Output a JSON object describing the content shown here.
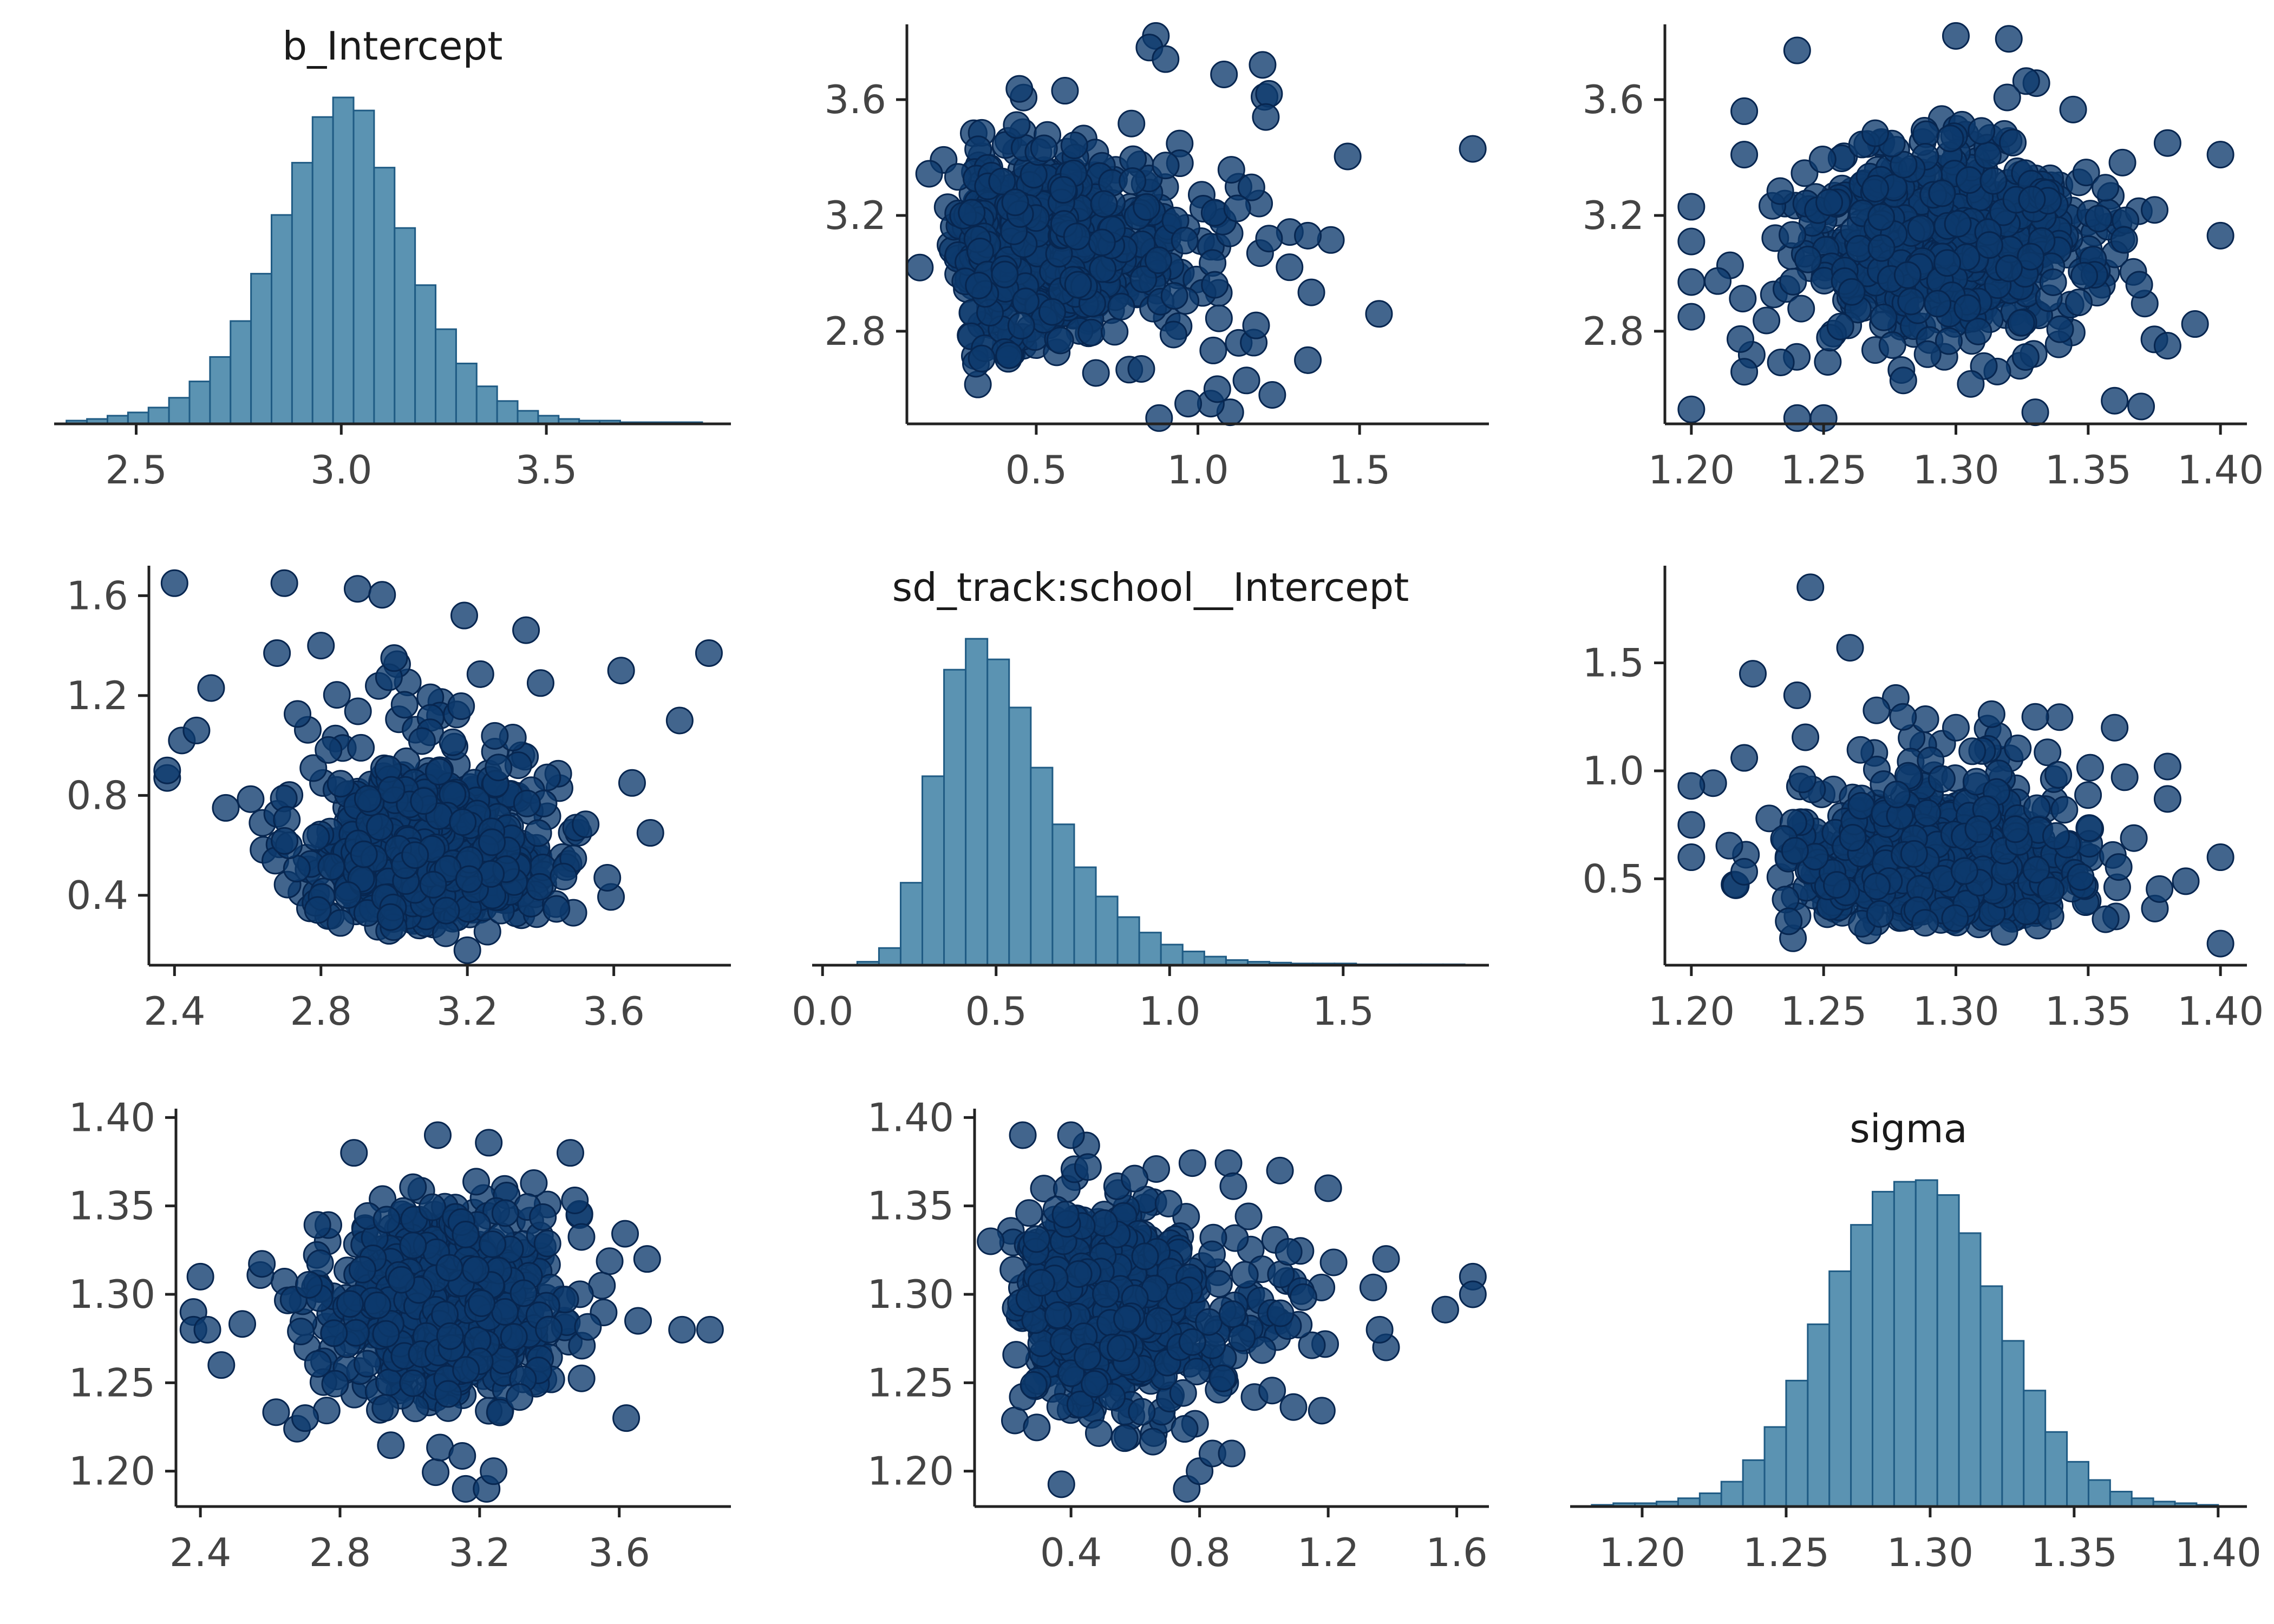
{
  "colors": {
    "histogram_fill": "#5b93b2",
    "histogram_edge": "#1f5b84",
    "point_fill": "#0d3a6d",
    "point_edge": "#072650",
    "axis": "#222222"
  },
  "chart_data": [
    {
      "type": "bar",
      "panel": "row1-col1",
      "variable": "b_Intercept",
      "title": "b_Intercept",
      "xlabel": "",
      "ylabel": "",
      "xlim": [
        2.3,
        3.95
      ],
      "bin_start": 2.33,
      "bin_width": 0.05,
      "counts": [
        2,
        3,
        5,
        7,
        10,
        16,
        26,
        41,
        63,
        92,
        128,
        160,
        188,
        200,
        192,
        157,
        120,
        85,
        58,
        37,
        23,
        14,
        8,
        5,
        3,
        2,
        2,
        1,
        1,
        1,
        1
      ],
      "x_ticks": [
        2.5,
        3.0,
        3.5
      ],
      "x_tick_labels": [
        "2.5",
        "3.0",
        "3.5"
      ],
      "y_ticks": [],
      "y_tick_labels": []
    },
    {
      "type": "scatter",
      "panel": "row1-col2",
      "x_variable": "sd_track:school__Intercept",
      "y_variable": "b_Intercept",
      "title": "",
      "xlabel": "",
      "ylabel": "",
      "xlim": [
        0.1,
        1.9
      ],
      "ylim": [
        2.48,
        3.86
      ],
      "x_ticks": [
        0.5,
        1.0,
        1.5
      ],
      "x_tick_labels": [
        "0.5",
        "1.0",
        "1.5"
      ],
      "y_ticks": [
        2.8,
        3.2,
        3.6
      ],
      "y_tick_labels": [
        "2.8",
        "3.2",
        "3.6"
      ],
      "cloud": {
        "n": 650,
        "x_mean": 0.55,
        "x_sd": 0.2,
        "x_skew": true,
        "y_mean": 3.1,
        "y_sd": 0.17,
        "seed": 11
      },
      "points": [
        [
          1.85,
          3.43
        ],
        [
          1.56,
          2.86
        ],
        [
          1.34,
          3.13
        ],
        [
          1.34,
          2.7
        ],
        [
          1.22,
          3.12
        ],
        [
          1.23,
          2.58
        ],
        [
          1.2,
          3.72
        ],
        [
          1.22,
          3.62
        ],
        [
          1.21,
          3.54
        ],
        [
          1.18,
          2.82
        ],
        [
          1.1,
          2.52
        ],
        [
          1.04,
          2.55
        ],
        [
          0.87,
          3.82
        ],
        [
          0.85,
          3.78
        ],
        [
          0.9,
          3.74
        ],
        [
          0.88,
          2.5
        ],
        [
          0.97,
          2.55
        ],
        [
          0.14,
          3.02
        ],
        [
          1.06,
          2.6
        ],
        [
          1.15,
          2.63
        ]
      ]
    },
    {
      "type": "scatter",
      "panel": "row1-col3",
      "x_variable": "sigma",
      "y_variable": "b_Intercept",
      "title": "",
      "xlabel": "",
      "ylabel": "",
      "xlim": [
        1.19,
        1.41
      ],
      "ylim": [
        2.48,
        3.86
      ],
      "x_ticks": [
        1.2,
        1.25,
        1.3,
        1.35,
        1.4
      ],
      "x_tick_labels": [
        "1.20",
        "1.25",
        "1.30",
        "1.35",
        "1.40"
      ],
      "y_ticks": [
        2.8,
        3.2,
        3.6
      ],
      "y_tick_labels": [
        "2.8",
        "3.2",
        "3.6"
      ],
      "cloud": {
        "n": 650,
        "x_mean": 1.295,
        "x_sd": 0.028,
        "x_skew": false,
        "y_mean": 3.1,
        "y_sd": 0.17,
        "seed": 23
      },
      "points": [
        [
          1.2,
          2.53
        ],
        [
          1.2,
          3.11
        ],
        [
          1.2,
          2.97
        ],
        [
          1.2,
          3.23
        ],
        [
          1.2,
          2.85
        ],
        [
          1.22,
          3.56
        ],
        [
          1.22,
          3.41
        ],
        [
          1.24,
          3.77
        ],
        [
          1.24,
          2.5
        ],
        [
          1.3,
          3.82
        ],
        [
          1.32,
          3.81
        ],
        [
          1.4,
          3.41
        ],
        [
          1.4,
          3.13
        ],
        [
          1.38,
          3.45
        ],
        [
          1.37,
          2.54
        ],
        [
          1.38,
          2.75
        ],
        [
          1.22,
          2.66
        ],
        [
          1.25,
          2.5
        ],
        [
          1.33,
          2.52
        ],
        [
          1.36,
          2.56
        ]
      ]
    },
    {
      "type": "scatter",
      "panel": "row2-col1",
      "x_variable": "b_Intercept",
      "y_variable": "sd_track:school__Intercept",
      "title": "",
      "xlabel": "",
      "ylabel": "",
      "xlim": [
        2.33,
        3.92
      ],
      "ylim": [
        0.12,
        1.72
      ],
      "x_ticks": [
        2.4,
        2.8,
        3.2,
        3.6
      ],
      "x_tick_labels": [
        "2.4",
        "2.8",
        "3.2",
        "3.6"
      ],
      "y_ticks": [
        0.4,
        0.8,
        1.2,
        1.6
      ],
      "y_tick_labels": [
        "0.4",
        "0.8",
        "1.2",
        "1.6"
      ],
      "cloud": {
        "n": 650,
        "x_mean": 3.1,
        "x_sd": 0.17,
        "x_skew": false,
        "y_mean": 0.6,
        "y_sd": 0.2,
        "y_skew": true,
        "seed": 37
      },
      "points": [
        [
          2.4,
          1.65
        ],
        [
          2.7,
          1.65
        ],
        [
          3.86,
          1.37
        ],
        [
          2.38,
          0.87
        ],
        [
          2.38,
          0.9
        ],
        [
          2.42,
          1.02
        ],
        [
          2.46,
          1.06
        ],
        [
          2.5,
          1.23
        ],
        [
          3.62,
          1.3
        ],
        [
          3.78,
          1.1
        ],
        [
          3.7,
          0.65
        ],
        [
          2.54,
          0.75
        ],
        [
          3.2,
          0.18
        ],
        [
          2.68,
          1.37
        ],
        [
          2.8,
          1.4
        ],
        [
          3.4,
          1.25
        ],
        [
          3.65,
          0.85
        ],
        [
          3.0,
          1.35
        ]
      ]
    },
    {
      "type": "bar",
      "panel": "row2-col2",
      "variable": "sd_track:school__Intercept",
      "title": "sd_track:school__Intercept",
      "xlabel": "",
      "ylabel": "",
      "xlim": [
        -0.03,
        1.92
      ],
      "bin_start": 0.1,
      "bin_width": 0.0625,
      "counts": [
        2,
        10,
        48,
        110,
        172,
        190,
        178,
        150,
        115,
        82,
        57,
        40,
        28,
        19,
        12,
        8,
        5,
        3,
        2,
        1.5,
        1,
        1,
        1,
        0.5,
        0.5,
        0.5,
        0.5,
        0.5
      ],
      "x_ticks": [
        0.0,
        0.5,
        1.0,
        1.5
      ],
      "x_tick_labels": [
        "0.0",
        "0.5",
        "1.0",
        "1.5"
      ],
      "y_ticks": [],
      "y_tick_labels": []
    },
    {
      "type": "scatter",
      "panel": "row2-col3",
      "x_variable": "sigma",
      "y_variable": "sd_track:school__Intercept",
      "title": "",
      "xlabel": "",
      "ylabel": "",
      "xlim": [
        1.19,
        1.41
      ],
      "ylim": [
        0.1,
        1.95
      ],
      "x_ticks": [
        1.2,
        1.25,
        1.3,
        1.35,
        1.4
      ],
      "x_tick_labels": [
        "1.20",
        "1.25",
        "1.30",
        "1.35",
        "1.40"
      ],
      "y_ticks": [
        0.5,
        1.0,
        1.5
      ],
      "y_tick_labels": [
        "0.5",
        "1.0",
        "1.5"
      ],
      "cloud": {
        "n": 650,
        "x_mean": 1.295,
        "x_sd": 0.028,
        "x_skew": false,
        "y_mean": 0.6,
        "y_sd": 0.2,
        "y_skew": true,
        "seed": 41
      },
      "points": [
        [
          1.245,
          1.85
        ],
        [
          1.26,
          1.57
        ],
        [
          1.24,
          1.35
        ],
        [
          1.4,
          0.6
        ],
        [
          1.4,
          0.2
        ],
        [
          1.38,
          1.02
        ],
        [
          1.38,
          0.87
        ],
        [
          1.2,
          0.6
        ],
        [
          1.2,
          0.93
        ],
        [
          1.2,
          0.75
        ],
        [
          1.22,
          1.06
        ],
        [
          1.27,
          1.28
        ],
        [
          1.36,
          1.2
        ],
        [
          1.3,
          1.2
        ],
        [
          1.33,
          1.25
        ],
        [
          1.28,
          1.25
        ]
      ]
    },
    {
      "type": "scatter",
      "panel": "row3-col1",
      "x_variable": "b_Intercept",
      "y_variable": "sigma",
      "title": "",
      "xlabel": "",
      "ylabel": "",
      "xlim": [
        2.33,
        3.92
      ],
      "ylim": [
        1.18,
        1.405
      ],
      "x_ticks": [
        2.4,
        2.8,
        3.2,
        3.6
      ],
      "x_tick_labels": [
        "2.4",
        "2.8",
        "3.2",
        "3.6"
      ],
      "y_ticks": [
        1.2,
        1.25,
        1.3,
        1.35,
        1.4
      ],
      "y_tick_labels": [
        "1.20",
        "1.25",
        "1.30",
        "1.35",
        "1.40"
      ],
      "cloud": {
        "n": 650,
        "x_mean": 3.1,
        "x_sd": 0.17,
        "x_skew": false,
        "y_mean": 1.295,
        "y_sd": 0.028,
        "seed": 53
      },
      "points": [
        [
          2.38,
          1.29
        ],
        [
          2.4,
          1.31
        ],
        [
          2.38,
          1.28
        ],
        [
          2.42,
          1.28
        ],
        [
          2.46,
          1.26
        ],
        [
          3.86,
          1.28
        ],
        [
          3.78,
          1.28
        ],
        [
          3.68,
          1.32
        ],
        [
          3.62,
          1.23
        ],
        [
          3.16,
          1.19
        ],
        [
          3.22,
          1.19
        ],
        [
          3.24,
          1.2
        ],
        [
          3.08,
          1.39
        ],
        [
          2.84,
          1.38
        ],
        [
          3.46,
          1.38
        ],
        [
          2.7,
          1.23
        ]
      ]
    },
    {
      "type": "scatter",
      "panel": "row3-col2",
      "x_variable": "sd_track:school__Intercept",
      "y_variable": "sigma",
      "title": "",
      "xlabel": "",
      "ylabel": "",
      "xlim": [
        0.1,
        1.7
      ],
      "ylim": [
        1.18,
        1.405
      ],
      "x_ticks": [
        0.4,
        0.8,
        1.2,
        1.6
      ],
      "x_tick_labels": [
        "0.4",
        "0.8",
        "1.2",
        "1.6"
      ],
      "y_ticks": [
        1.2,
        1.25,
        1.3,
        1.35,
        1.4
      ],
      "y_tick_labels": [
        "1.20",
        "1.25",
        "1.30",
        "1.35",
        "1.40"
      ],
      "cloud": {
        "n": 650,
        "x_mean": 0.55,
        "x_sd": 0.2,
        "x_skew": true,
        "y_mean": 1.295,
        "y_sd": 0.028,
        "seed": 67
      },
      "points": [
        [
          1.65,
          1.31
        ],
        [
          1.65,
          1.3
        ],
        [
          1.38,
          1.32
        ],
        [
          1.38,
          1.27
        ],
        [
          1.36,
          1.28
        ],
        [
          0.25,
          1.39
        ],
        [
          0.4,
          1.39
        ],
        [
          0.76,
          1.19
        ],
        [
          0.8,
          1.2
        ],
        [
          0.84,
          1.21
        ],
        [
          0.9,
          1.21
        ],
        [
          1.05,
          1.37
        ],
        [
          1.2,
          1.36
        ],
        [
          0.15,
          1.33
        ]
      ]
    },
    {
      "type": "bar",
      "panel": "row3-col3",
      "variable": "sigma",
      "title": "sigma",
      "xlabel": "",
      "ylabel": "",
      "xlim": [
        1.175,
        1.41
      ],
      "bin_start": 1.1825,
      "bin_width": 0.0075,
      "counts": [
        1,
        2,
        2,
        3,
        5,
        8,
        15,
        28,
        48,
        76,
        110,
        142,
        170,
        190,
        196,
        197,
        188,
        165,
        133,
        100,
        70,
        45,
        27,
        16,
        9,
        5,
        3,
        2,
        1
      ],
      "x_ticks": [
        1.2,
        1.25,
        1.3,
        1.35,
        1.4
      ],
      "x_tick_labels": [
        "1.20",
        "1.25",
        "1.30",
        "1.35",
        "1.40"
      ],
      "y_ticks": [],
      "y_tick_labels": []
    }
  ]
}
